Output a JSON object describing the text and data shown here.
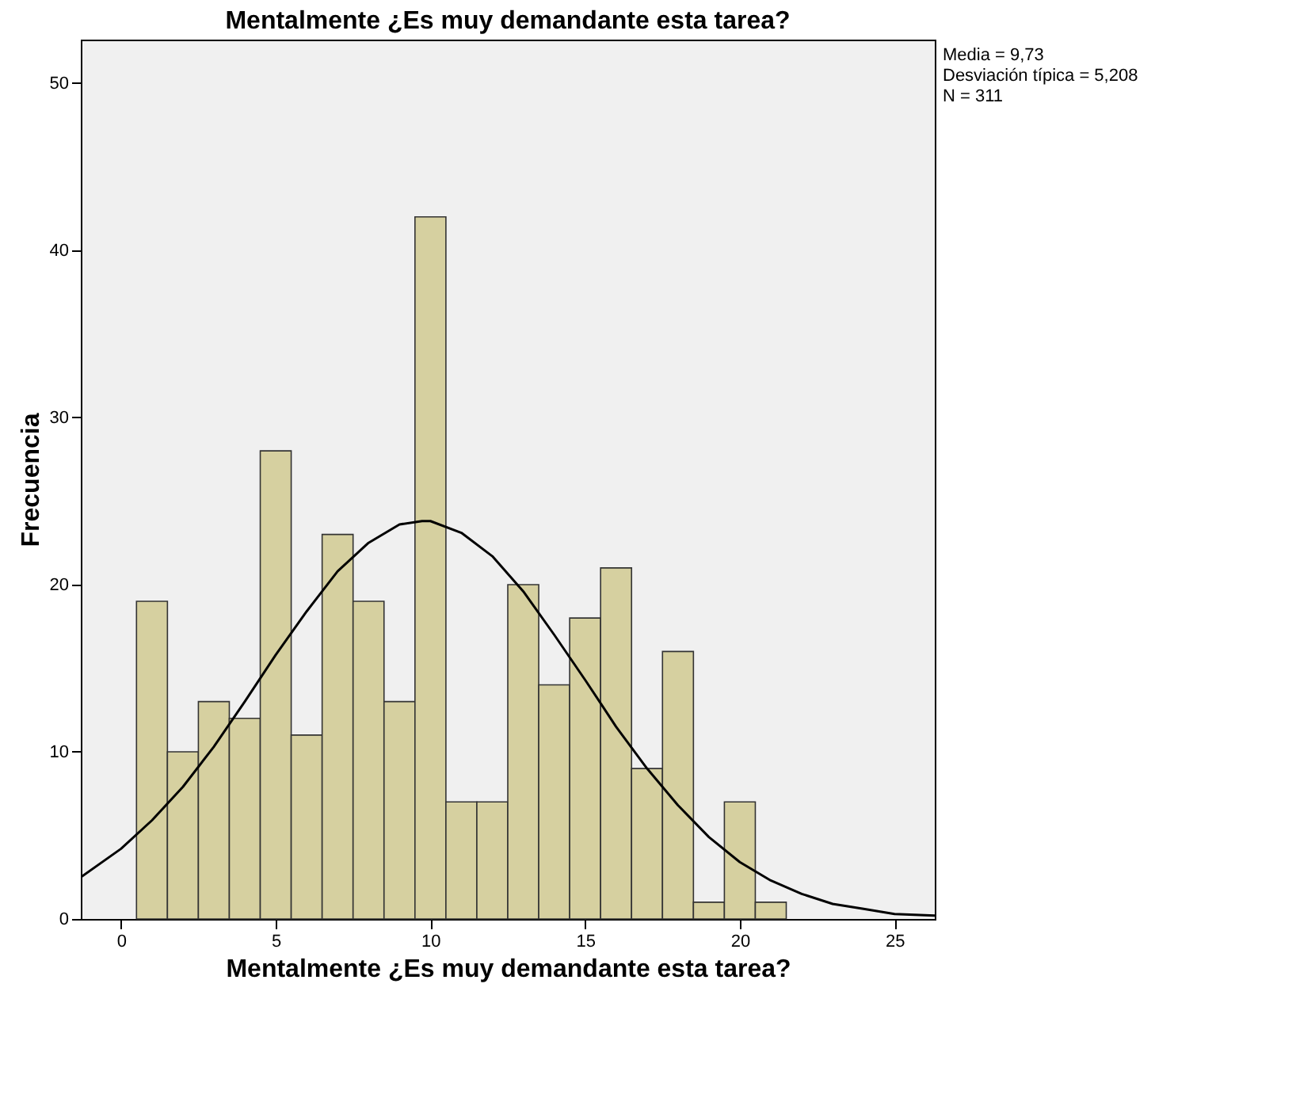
{
  "chart_data": {
    "type": "histogram",
    "title": "Mentalmente ¿Es muy demandante esta tarea?",
    "xlabel": "Mentalmente ¿Es muy demandante esta tarea?",
    "ylabel": "Frecuencia",
    "bins": [
      0.5,
      1.5,
      2.5,
      3.5,
      4.5,
      5.5,
      6.5,
      7.5,
      8.5,
      9.5,
      10.5,
      11.5,
      12.5,
      13.5,
      14.5,
      15.5,
      16.5,
      17.5,
      18.5,
      19.5,
      20.5,
      21.5
    ],
    "values": [
      19,
      10,
      13,
      12,
      28,
      11,
      23,
      19,
      13,
      42,
      7,
      7,
      20,
      14,
      18,
      21,
      9,
      16,
      1,
      7,
      1
    ],
    "color": "#d6d0a0",
    "series": [
      {
        "type": "line",
        "color": "#000000",
        "x": [
          -1.3,
          0,
          1,
          2,
          3,
          4,
          5,
          6,
          7,
          8,
          9,
          9.73,
          10,
          11,
          12,
          13,
          14,
          15,
          16,
          17,
          18,
          19,
          20,
          21,
          22,
          23,
          24,
          25,
          26.3
        ],
        "values": [
          2.5,
          4.2,
          5.9,
          7.9,
          10.3,
          13.0,
          15.8,
          18.4,
          20.8,
          22.5,
          23.6,
          23.8,
          23.8,
          23.1,
          21.7,
          19.6,
          17.0,
          14.3,
          11.5,
          9.0,
          6.8,
          4.9,
          3.4,
          2.3,
          1.5,
          0.9,
          0.6,
          0.3,
          0.2
        ]
      }
    ],
    "xlim": [
      -1.3,
      26.3
    ],
    "ylim": [
      0,
      52.6
    ],
    "xticks": [
      0,
      5,
      10,
      15,
      20,
      25
    ],
    "yticks": [
      0,
      10,
      20,
      30,
      40,
      50
    ],
    "grid": false,
    "annotations": [
      "Media = 9,73",
      "Desviación típica = 5,208",
      "N = 311"
    ]
  }
}
